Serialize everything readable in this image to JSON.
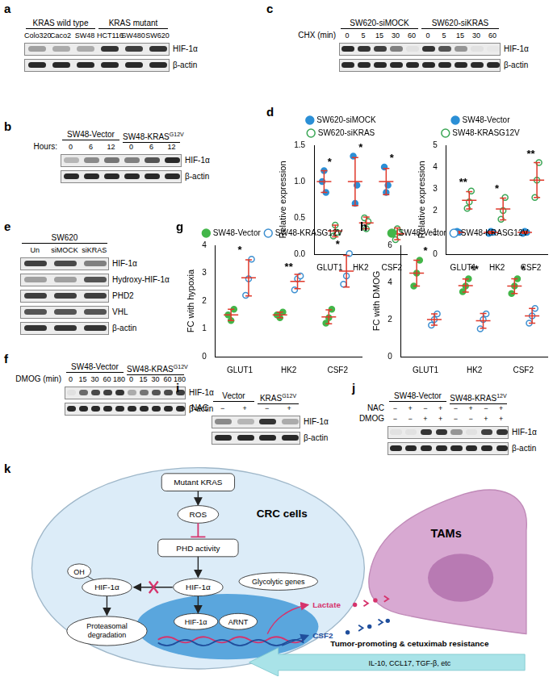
{
  "chart_data": [
    {
      "panel": "d",
      "type": "scatter",
      "categories": [
        "GLUT1",
        "HK2",
        "CSF2"
      ],
      "y_label": "Relative expression",
      "ylim": [
        0,
        1.5
      ],
      "yticks": [
        {
          "value": 0,
          "label": "0.0"
        },
        {
          "value": 0.5,
          "label": "0.5"
        },
        {
          "value": 1,
          "label": "1.0"
        },
        {
          "value": 1.5,
          "label": "1.5"
        }
      ],
      "grid": false,
      "legend": "top",
      "series": [
        {
          "name": "SW620-siMOCK",
          "color": "#2b8fd6",
          "marker": "circle",
          "values": [
            [
              1.0,
              1.15,
              0.85
            ],
            [
              1.35,
              0.7,
              0.95
            ],
            [
              1.2,
              0.85,
              0.95
            ]
          ],
          "mean": [
            1.0,
            1.0,
            1.0
          ],
          "sd": [
            0.15,
            0.33,
            0.18
          ]
        },
        {
          "name": "SW620-siKRAS",
          "color": "#3aa655",
          "marker": "open_circle",
          "values": [
            [
              0.25,
              0.4,
              0.3
            ],
            [
              0.5,
              0.35,
              0.45
            ],
            [
              0.2,
              0.35,
              0.3
            ]
          ],
          "mean": [
            0.32,
            0.43,
            0.28
          ],
          "sd": [
            0.08,
            0.08,
            0.08
          ]
        }
      ],
      "significance": [
        "*",
        "*",
        "*"
      ]
    },
    {
      "type": "scatter",
      "categories": [
        "GLUT1",
        "HK2",
        "CSF2"
      ],
      "y_label": "Relative expression",
      "ylim": [
        0,
        5
      ],
      "yticks": [
        0,
        1,
        2,
        3,
        4,
        5
      ],
      "grid": false,
      "legend": "top",
      "series": [
        {
          "name": "SW48-Vector",
          "color": "#2b8fd6",
          "marker": "circle",
          "values": [
            [
              0.95,
              1.05,
              1.0
            ],
            [
              0.95,
              1.05,
              1.0
            ],
            [
              0.95,
              1.05,
              1.0
            ]
          ],
          "mean": [
            1.0,
            1.0,
            1.0
          ],
          "sd": [
            0.05,
            0.05,
            0.05
          ]
        },
        {
          "name": "SW48-KRASG12V",
          "color": "#3aa655",
          "marker": "open_circle",
          "values": [
            [
              2.1,
              2.4,
              2.9
            ],
            [
              1.6,
              2.0,
              2.6
            ],
            [
              2.6,
              3.4,
              4.2
            ]
          ],
          "mean": [
            2.47,
            2.07,
            3.4
          ],
          "sd": [
            0.4,
            0.5,
            0.8
          ]
        }
      ],
      "significance": [
        "**",
        "*",
        "**"
      ]
    },
    {
      "panel": "g",
      "type": "scatter",
      "categories": [
        "GLUT1",
        "HK2",
        "CSF2"
      ],
      "y_label": "FC with hypoxia",
      "ylim": [
        0,
        4
      ],
      "yticks": [
        0,
        1,
        2,
        3,
        4
      ],
      "grid": false,
      "legend": "top",
      "series": [
        {
          "name": "SW48-Vector",
          "color": "#43b649",
          "marker": "circle",
          "values": [
            [
              1.5,
              1.3,
              1.7
            ],
            [
              1.5,
              1.4,
              1.6
            ],
            [
              1.2,
              1.4,
              1.7
            ]
          ],
          "mean": [
            1.5,
            1.5,
            1.43
          ],
          "sd": [
            0.2,
            0.1,
            0.25
          ]
        },
        {
          "name": "SW48-KRASG12V",
          "color": "#3d8fd0",
          "marker": "open_circle",
          "values": [
            [
              2.2,
              2.8,
              3.5
            ],
            [
              2.4,
              2.8,
              2.9
            ],
            [
              2.6,
              2.9,
              3.7
            ]
          ],
          "mean": [
            2.83,
            2.7,
            3.07
          ],
          "sd": [
            0.65,
            0.26,
            0.57
          ]
        }
      ],
      "significance": [
        "*",
        "**",
        "*"
      ]
    },
    {
      "panel": "h",
      "type": "scatter",
      "categories": [
        "GLUT1",
        "HK2",
        "CSF2"
      ],
      "y_label": "FC with DMOG",
      "ylim": [
        0,
        6
      ],
      "yticks": [
        0,
        2,
        4,
        6
      ],
      "grid": false,
      "legend": "top",
      "series": [
        {
          "name": "SW48-Vector",
          "color": "#43b649",
          "marker": "circle",
          "values": [
            [
              3.8,
              4.5,
              5.2
            ],
            [
              3.5,
              3.8,
              4.2
            ],
            [
              3.4,
              3.8,
              4.2
            ]
          ],
          "mean": [
            4.5,
            3.83,
            3.8
          ],
          "sd": [
            0.7,
            0.35,
            0.4
          ]
        },
        {
          "name": "SW48-KRASG12V",
          "color": "#3d8fd0",
          "marker": "open_circle",
          "values": [
            [
              1.7,
              2.0,
              2.3
            ],
            [
              1.5,
              2.0,
              2.3
            ],
            [
              1.8,
              2.2,
              2.6
            ]
          ],
          "mean": [
            2.0,
            1.93,
            2.2
          ],
          "sd": [
            0.3,
            0.4,
            0.4
          ]
        }
      ],
      "significance": [
        "*",
        "**",
        "*"
      ]
    }
  ],
  "blots": [
    {
      "panel": "a",
      "groups": [
        {
          "title": "KRAS wild type",
          "lanes": [
            "Colo320",
            "Caco2",
            "SW48"
          ]
        },
        {
          "title": "KRAS mutant",
          "lanes": [
            "HCT116",
            "SW480",
            "SW620"
          ]
        }
      ],
      "rows": [
        {
          "name": "HIF-1α",
          "bands": [
            0.35,
            0.3,
            0.3,
            0.85,
            0.8,
            0.85
          ]
        },
        {
          "name": "β-actin",
          "bands": [
            0.9,
            0.9,
            0.9,
            0.9,
            0.9,
            0.9
          ]
        }
      ]
    },
    {
      "panel": "b",
      "lane_title": "Hours:",
      "groups": [
        {
          "title": {
            "text": "SW48-Vector"
          },
          "lanes": [
            0,
            6,
            12
          ]
        },
        {
          "title": {
            "text": "SW48-KRAS",
            "sup": "G12V"
          },
          "lanes": [
            0,
            6,
            12
          ]
        }
      ],
      "rows": [
        {
          "name": "HIF-1α",
          "bands": [
            0.25,
            0.45,
            0.55,
            0.5,
            0.7,
            0.9
          ]
        },
        {
          "name": "β-actin",
          "bands": [
            0.9,
            0.9,
            0.9,
            0.9,
            0.9,
            0.9
          ]
        }
      ]
    },
    {
      "panel": "c",
      "lane_title": "CHX (min)",
      "groups": [
        {
          "title": "SW620-siMOCK",
          "lanes": [
            0,
            5,
            15,
            30,
            60
          ]
        },
        {
          "title": "SW620-siKRAS",
          "lanes": [
            0,
            5,
            15,
            30,
            60
          ]
        }
      ],
      "rows": [
        {
          "name": "HIF-1α",
          "bands": [
            0.9,
            0.85,
            0.8,
            0.5,
            0.05,
            0.85,
            0.7,
            0.4,
            0.05,
            0.02
          ]
        },
        {
          "name": "β-actin",
          "bands": [
            0.9,
            0.9,
            0.9,
            0.9,
            0.9,
            0.9,
            0.9,
            0.9,
            0.9,
            0.9
          ]
        }
      ]
    },
    {
      "panel": "e",
      "groups": [
        {
          "title": "SW620",
          "lanes": [
            "Un",
            "siMOCK",
            "siKRAS"
          ]
        }
      ],
      "rows": [
        {
          "name": "HIF-1α",
          "bands": [
            0.8,
            0.75,
            0.5
          ]
        },
        {
          "name": "Hydroxy-HIF-1α",
          "bands": [
            0.35,
            0.35,
            0.7
          ]
        },
        {
          "name": "PHD2",
          "bands": [
            0.8,
            0.8,
            0.8
          ]
        },
        {
          "name": "VHL",
          "bands": [
            0.7,
            0.7,
            0.7
          ]
        },
        {
          "name": "β-actin",
          "bands": [
            0.85,
            0.85,
            0.85
          ]
        }
      ]
    },
    {
      "panel": "f",
      "lane_title": "DMOG (min)",
      "groups": [
        {
          "title": {
            "text": "SW48-Vector"
          },
          "lanes": [
            0,
            15,
            30,
            60,
            180
          ]
        },
        {
          "title": {
            "text": "SW48-KRAS",
            "sup": "G12V"
          },
          "lanes": [
            0,
            15,
            30,
            60,
            180
          ]
        }
      ],
      "rows": [
        {
          "name": "HIF-1α",
          "bands": [
            0.05,
            0.6,
            0.75,
            0.8,
            0.85,
            0.3,
            0.55,
            0.7,
            0.75,
            0.8
          ]
        },
        {
          "name": "β-actin",
          "bands": [
            0.9,
            0.9,
            0.9,
            0.9,
            0.9,
            0.9,
            0.9,
            0.9,
            0.9,
            0.9
          ]
        }
      ]
    },
    {
      "panel": "i",
      "groups": [
        {
          "title": {
            "text": "Vector"
          }
        },
        {
          "title": {
            "text": "KRAS",
            "sup": "G12V"
          }
        }
      ],
      "treatments": [
        {
          "name": "NAC",
          "signs": [
            "−",
            "+",
            "−",
            "+"
          ]
        }
      ],
      "rows": [
        {
          "name": "HIF-1α",
          "bands": [
            0.45,
            0.25,
            0.85,
            0.3
          ]
        },
        {
          "name": "β-actin",
          "bands": [
            0.9,
            0.9,
            0.9,
            0.9
          ]
        }
      ]
    },
    {
      "panel": "j",
      "groups": [
        {
          "title": {
            "text": "SW48-Vector"
          }
        },
        {
          "title": {
            "text": "SW48-KRAS",
            "sup": "12V"
          }
        }
      ],
      "treatments": [
        {
          "name": "NAC",
          "signs": [
            "−",
            "+",
            "−",
            "+",
            "−",
            "+",
            "−",
            "+"
          ]
        },
        {
          "name": "DMOG",
          "signs": [
            "−",
            "−",
            "+",
            "+",
            "−",
            "−",
            "+",
            "+"
          ]
        }
      ],
      "rows": [
        {
          "name": "HIF-1α",
          "bands": [
            0.05,
            0.05,
            0.85,
            0.85,
            0.4,
            0.05,
            0.8,
            0.85
          ]
        },
        {
          "name": "β-actin",
          "bands": [
            0.9,
            0.9,
            0.9,
            0.9,
            0.9,
            0.9,
            0.9,
            0.9
          ]
        }
      ]
    }
  ],
  "diagram": {
    "panel": "k",
    "cell": "CRC cells",
    "macrophage": "TAMs",
    "kras": "Mutant KRAS",
    "ros": "ROS",
    "phd": "PHD activity",
    "hif": "HIF-1α",
    "oh": "OH",
    "hif_hydroxylated": "HIF-1α",
    "degradation": [
      "Proteasomal",
      "degradation"
    ],
    "hif_nuclear": "HIF-1α",
    "arnt": "ARNT",
    "genes": "Glycolytic genes",
    "lactate": "Lactate",
    "csf2": "CSF2",
    "feedback": "Tumor-promoting & cetuximab resistance",
    "factors": "IL-10, CCL17, TGF-β, etc"
  }
}
